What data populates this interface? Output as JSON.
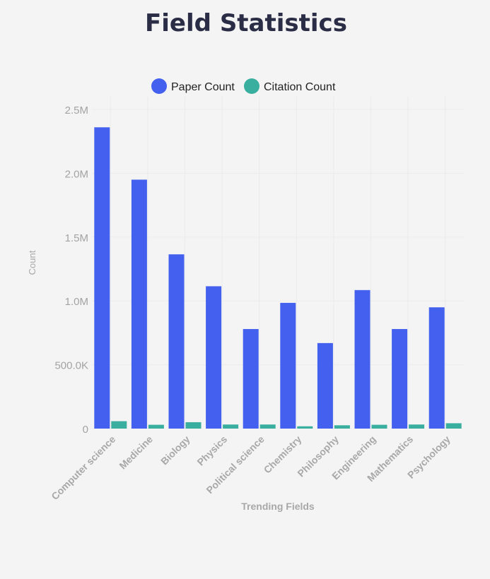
{
  "chart_data": {
    "type": "bar",
    "title": "Field Statistics",
    "xlabel": "Trending Fields",
    "ylabel": "Count",
    "ylim": [
      0,
      2500000
    ],
    "y_ticks": [
      0,
      500000,
      1000000,
      1500000,
      2000000,
      2500000
    ],
    "y_tick_labels": [
      "0",
      "500.0K",
      "1.0M",
      "1.5M",
      "2.0M",
      "2.5M"
    ],
    "grid": true,
    "legend_position": "top-center",
    "categories": [
      "Computer science",
      "Medicine",
      "Biology",
      "Physics",
      "Political science",
      "Chemistry",
      "Philosophy",
      "Engineering",
      "Mathematics",
      "Psychology"
    ],
    "series": [
      {
        "name": "Paper Count",
        "color": "#4361ee",
        "values": [
          2360000,
          1950000,
          1365000,
          1115000,
          780000,
          985000,
          670000,
          1085000,
          780000,
          950000
        ]
      },
      {
        "name": "Citation Count",
        "color": "#3aaf9f",
        "values": [
          58000,
          30000,
          50000,
          32000,
          32000,
          18000,
          26000,
          30000,
          32000,
          42000
        ]
      }
    ]
  }
}
